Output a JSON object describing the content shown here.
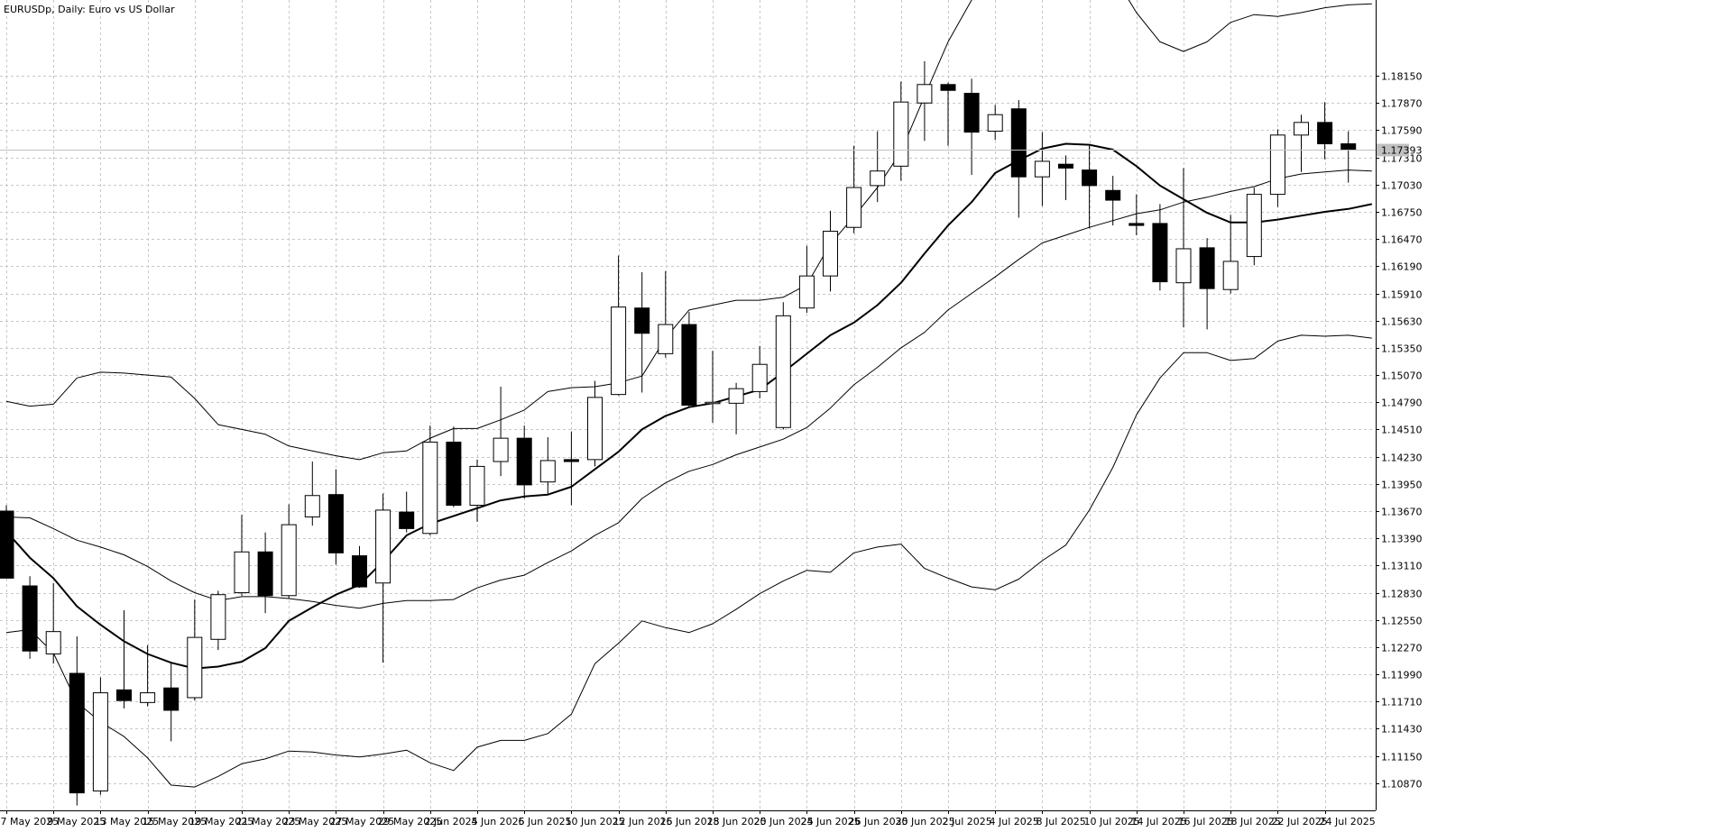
{
  "window_title": "EURUSDp, Daily: Euro vs US Dollar",
  "current_price_label": "1.17393",
  "colors": {
    "background": "#ffffff",
    "grid": "#c8c8c8",
    "candle_line": "#000000",
    "bull_body": "#ffffff",
    "bear_body": "#000000",
    "price_line": "#c0c0c0",
    "price_label_bg": "#c0c0c0",
    "price_label_text": "#ffffff"
  },
  "chart_data": {
    "type": "candlestick",
    "title": "EURUSDp, Daily: Euro vs US Dollar",
    "symbol": "EURUSDp",
    "timeframe": "Daily",
    "ylim": [
      1.1059,
      1.1893
    ],
    "y_ticks": [
      "1.18150",
      "1.17870",
      "1.17590",
      "1.17310",
      "1.17030",
      "1.16750",
      "1.16470",
      "1.16190",
      "1.15910",
      "1.15630",
      "1.15350",
      "1.15070",
      "1.14790",
      "1.14510",
      "1.14230",
      "1.13950",
      "1.13670",
      "1.13390",
      "1.13110",
      "1.12830",
      "1.12550",
      "1.12270",
      "1.11990",
      "1.11710",
      "1.11430",
      "1.11150",
      "1.10870"
    ],
    "x_tick_labels": [
      "7 May 2025",
      "9 May 2025",
      "13 May 2025",
      "15 May 2025",
      "19 May 2025",
      "21 May 2025",
      "23 May 2025",
      "27 May 2025",
      "29 May 2025",
      "2 Jun 2025",
      "4 Jun 2025",
      "6 Jun 2025",
      "10 Jun 2025",
      "12 Jun 2025",
      "16 Jun 2025",
      "18 Jun 2025",
      "20 Jun 2025",
      "24 Jun 2025",
      "26 Jun 2025",
      "30 Jun 2025",
      "2 Jul 2025",
      "4 Jul 2025",
      "8 Jul 2025",
      "10 Jul 2025",
      "14 Jul 2025",
      "16 Jul 2025",
      "18 Jul 2025",
      "22 Jul 2025",
      "24 Jul 2025"
    ],
    "x_tick_label_bars": [
      0,
      2,
      4,
      6,
      8,
      10,
      12,
      14,
      16,
      18,
      20,
      22,
      24,
      26,
      28,
      30,
      32,
      34,
      36,
      38,
      40,
      42,
      44,
      46,
      48,
      50,
      52,
      54,
      56
    ],
    "candles": [
      {
        "date": "7 May 2025",
        "open": 1.1367,
        "high": 1.1373,
        "low": 1.1298,
        "close": 1.1298
      },
      {
        "date": "8 May 2025",
        "open": 1.129,
        "high": 1.13,
        "low": 1.1215,
        "close": 1.1223
      },
      {
        "date": "9 May 2025",
        "open": 1.122,
        "high": 1.1293,
        "low": 1.121,
        "close": 1.1243
      },
      {
        "date": "12 May 2025",
        "open": 1.12,
        "high": 1.1238,
        "low": 1.1064,
        "close": 1.1077
      },
      {
        "date": "13 May 2025",
        "open": 1.1079,
        "high": 1.1196,
        "low": 1.1075,
        "close": 1.118
      },
      {
        "date": "14 May 2025",
        "open": 1.1183,
        "high": 1.1265,
        "low": 1.1164,
        "close": 1.1172
      },
      {
        "date": "15 May 2025",
        "open": 1.117,
        "high": 1.1229,
        "low": 1.1166,
        "close": 1.118
      },
      {
        "date": "16 May 2025",
        "open": 1.1185,
        "high": 1.1211,
        "low": 1.113,
        "close": 1.1162
      },
      {
        "date": "19 May 2025",
        "open": 1.1175,
        "high": 1.1276,
        "low": 1.1172,
        "close": 1.1237
      },
      {
        "date": "20 May 2025",
        "open": 1.1235,
        "high": 1.1285,
        "low": 1.1224,
        "close": 1.1281
      },
      {
        "date": "21 May 2025",
        "open": 1.1283,
        "high": 1.1363,
        "low": 1.128,
        "close": 1.1325
      },
      {
        "date": "22 May 2025",
        "open": 1.1325,
        "high": 1.1345,
        "low": 1.1262,
        "close": 1.128
      },
      {
        "date": "23 May 2025",
        "open": 1.128,
        "high": 1.1374,
        "low": 1.1277,
        "close": 1.1353
      },
      {
        "date": "26 May 2025",
        "open": 1.1361,
        "high": 1.1418,
        "low": 1.1352,
        "close": 1.1383
      },
      {
        "date": "27 May 2025",
        "open": 1.1384,
        "high": 1.141,
        "low": 1.1312,
        "close": 1.1324
      },
      {
        "date": "28 May 2025",
        "open": 1.1321,
        "high": 1.1331,
        "low": 1.1288,
        "close": 1.1289
      },
      {
        "date": "29 May 2025",
        "open": 1.1293,
        "high": 1.1385,
        "low": 1.1211,
        "close": 1.1368
      },
      {
        "date": "30 May 2025",
        "open": 1.1366,
        "high": 1.1387,
        "low": 1.1345,
        "close": 1.1349
      },
      {
        "date": "2 Jun 2025",
        "open": 1.1344,
        "high": 1.1455,
        "low": 1.1342,
        "close": 1.1438
      },
      {
        "date": "3 Jun 2025",
        "open": 1.1438,
        "high": 1.1454,
        "low": 1.1371,
        "close": 1.1373
      },
      {
        "date": "4 Jun 2025",
        "open": 1.1373,
        "high": 1.142,
        "low": 1.1356,
        "close": 1.1413
      },
      {
        "date": "5 Jun 2025",
        "open": 1.1418,
        "high": 1.1495,
        "low": 1.1403,
        "close": 1.1442
      },
      {
        "date": "6 Jun 2025",
        "open": 1.1442,
        "high": 1.1455,
        "low": 1.138,
        "close": 1.1394
      },
      {
        "date": "9 Jun 2025",
        "open": 1.1397,
        "high": 1.1443,
        "low": 1.1385,
        "close": 1.1419
      },
      {
        "date": "10 Jun 2025",
        "open": 1.142,
        "high": 1.1449,
        "low": 1.1373,
        "close": 1.1418
      },
      {
        "date": "11 Jun 2025",
        "open": 1.142,
        "high": 1.1501,
        "low": 1.1413,
        "close": 1.1484
      },
      {
        "date": "12 Jun 2025",
        "open": 1.1487,
        "high": 1.163,
        "low": 1.1486,
        "close": 1.1577
      },
      {
        "date": "13 Jun 2025",
        "open": 1.1576,
        "high": 1.1613,
        "low": 1.1489,
        "close": 1.155
      },
      {
        "date": "16 Jun 2025",
        "open": 1.1529,
        "high": 1.1614,
        "low": 1.1525,
        "close": 1.1559
      },
      {
        "date": "17 Jun 2025",
        "open": 1.1559,
        "high": 1.1572,
        "low": 1.1474,
        "close": 1.1476
      },
      {
        "date": "18 Jun 2025",
        "open": 1.1478,
        "high": 1.1532,
        "low": 1.1458,
        "close": 1.1479
      },
      {
        "date": "19 Jun 2025",
        "open": 1.1478,
        "high": 1.1499,
        "low": 1.1446,
        "close": 1.1493
      },
      {
        "date": "20 Jun 2025",
        "open": 1.149,
        "high": 1.1537,
        "low": 1.1483,
        "close": 1.1518
      },
      {
        "date": "23 Jun 2025",
        "open": 1.1453,
        "high": 1.1582,
        "low": 1.1451,
        "close": 1.1568
      },
      {
        "date": "24 Jun 2025",
        "open": 1.1576,
        "high": 1.164,
        "low": 1.1571,
        "close": 1.1609
      },
      {
        "date": "25 Jun 2025",
        "open": 1.1609,
        "high": 1.1676,
        "low": 1.1593,
        "close": 1.1655
      },
      {
        "date": "26 Jun 2025",
        "open": 1.1659,
        "high": 1.1743,
        "low": 1.1653,
        "close": 1.17
      },
      {
        "date": "27 Jun 2025",
        "open": 1.1702,
        "high": 1.1758,
        "low": 1.1685,
        "close": 1.1717
      },
      {
        "date": "30 Jun 2025",
        "open": 1.1722,
        "high": 1.1809,
        "low": 1.1707,
        "close": 1.1788
      },
      {
        "date": "1 Jul 2025",
        "open": 1.1787,
        "high": 1.183,
        "low": 1.1748,
        "close": 1.1806
      },
      {
        "date": "2 Jul 2025",
        "open": 1.1806,
        "high": 1.1808,
        "low": 1.1743,
        "close": 1.18
      },
      {
        "date": "3 Jul 2025",
        "open": 1.1797,
        "high": 1.1812,
        "low": 1.1713,
        "close": 1.1757
      },
      {
        "date": "4 Jul 2025",
        "open": 1.1758,
        "high": 1.1785,
        "low": 1.1749,
        "close": 1.1775
      },
      {
        "date": "7 Jul 2025",
        "open": 1.1781,
        "high": 1.179,
        "low": 1.1669,
        "close": 1.1711
      },
      {
        "date": "8 Jul 2025",
        "open": 1.1711,
        "high": 1.1757,
        "low": 1.1681,
        "close": 1.1727
      },
      {
        "date": "9 Jul 2025",
        "open": 1.1724,
        "high": 1.1733,
        "low": 1.1687,
        "close": 1.172
      },
      {
        "date": "10 Jul 2025",
        "open": 1.1718,
        "high": 1.1743,
        "low": 1.1658,
        "close": 1.1702
      },
      {
        "date": "11 Jul 2025",
        "open": 1.1697,
        "high": 1.1712,
        "low": 1.1661,
        "close": 1.1687
      },
      {
        "date": "14 Jul 2025",
        "open": 1.1663,
        "high": 1.1693,
        "low": 1.1651,
        "close": 1.1661
      },
      {
        "date": "15 Jul 2025",
        "open": 1.1663,
        "high": 1.1683,
        "low": 1.1594,
        "close": 1.1603
      },
      {
        "date": "16 Jul 2025",
        "open": 1.1602,
        "high": 1.172,
        "low": 1.1556,
        "close": 1.1637
      },
      {
        "date": "17 Jul 2025",
        "open": 1.1638,
        "high": 1.1648,
        "low": 1.1554,
        "close": 1.1596
      },
      {
        "date": "18 Jul 2025",
        "open": 1.1595,
        "high": 1.1672,
        "low": 1.1591,
        "close": 1.1624
      },
      {
        "date": "21 Jul 2025",
        "open": 1.1629,
        "high": 1.17,
        "low": 1.162,
        "close": 1.1693
      },
      {
        "date": "22 Jul 2025",
        "open": 1.1693,
        "high": 1.176,
        "low": 1.168,
        "close": 1.1754
      },
      {
        "date": "23 Jul 2025",
        "open": 1.1754,
        "high": 1.1775,
        "low": 1.1716,
        "close": 1.1767
      },
      {
        "date": "24 Jul 2025",
        "open": 1.1767,
        "high": 1.1788,
        "low": 1.1729,
        "close": 1.1745
      },
      {
        "date": "25 Jul 2025",
        "open": 1.1745,
        "high": 1.1758,
        "low": 1.1705,
        "close": 1.1739
      }
    ],
    "ma_line": [
      1.1346,
      1.1319,
      1.1298,
      1.1269,
      1.125,
      1.1233,
      1.122,
      1.1211,
      1.1205,
      1.1207,
      1.1212,
      1.1226,
      1.1254,
      1.1268,
      1.1281,
      1.1291,
      1.1315,
      1.1342,
      1.1354,
      1.1362,
      1.137,
      1.1378,
      1.1382,
      1.1384,
      1.1392,
      1.141,
      1.1428,
      1.1451,
      1.1465,
      1.1474,
      1.1478,
      1.1485,
      1.1492,
      1.151,
      1.1529,
      1.1548,
      1.1561,
      1.1579,
      1.1602,
      1.1632,
      1.1661,
      1.1685,
      1.1715,
      1.1728,
      1.174,
      1.1745,
      1.1744,
      1.1739,
      1.1722,
      1.1702,
      1.1688,
      1.1674,
      1.1664,
      1.1664,
      1.1667,
      1.1671,
      1.1675,
      1.1678,
      1.1683
    ],
    "upper_band": [
      1.148,
      1.1475,
      1.1477,
      1.1504,
      1.151,
      1.1509,
      1.1507,
      1.1505,
      1.1483,
      1.1456,
      1.1451,
      1.1446,
      1.1434,
      1.1429,
      1.1424,
      1.142,
      1.1427,
      1.1429,
      1.1442,
      1.1452,
      1.1452,
      1.1461,
      1.1471,
      1.149,
      1.1494,
      1.1495,
      1.1499,
      1.1506,
      1.1545,
      1.1574,
      1.1579,
      1.1584,
      1.1584,
      1.1587,
      1.16,
      1.1642,
      1.167,
      1.17,
      1.1737,
      1.1794,
      1.185,
      1.1893,
      1.193,
      1.1955,
      1.197,
      1.197,
      1.195,
      1.192,
      1.188,
      1.185,
      1.184,
      1.185,
      1.187,
      1.1878,
      1.1876,
      1.188,
      1.1885,
      1.1888,
      1.1889
    ],
    "middle_band": [
      1.1361,
      1.136,
      1.1349,
      1.1337,
      1.133,
      1.1322,
      1.131,
      1.1295,
      1.1283,
      1.1275,
      1.1279,
      1.1279,
      1.1277,
      1.1274,
      1.127,
      1.1267,
      1.1272,
      1.1275,
      1.1275,
      1.1276,
      1.1288,
      1.1296,
      1.1301,
      1.1314,
      1.1326,
      1.1342,
      1.1355,
      1.138,
      1.1396,
      1.1408,
      1.1415,
      1.1425,
      1.1433,
      1.1441,
      1.1453,
      1.1473,
      1.1497,
      1.1515,
      1.1535,
      1.1551,
      1.1574,
      1.1591,
      1.1608,
      1.1626,
      1.1643,
      1.1651,
      1.1659,
      1.1666,
      1.1673,
      1.1677,
      1.1685,
      1.169,
      1.1696,
      1.1701,
      1.1709,
      1.1714,
      1.1716,
      1.1718,
      1.1717
    ],
    "lower_band": [
      1.1242,
      1.1245,
      1.1221,
      1.117,
      1.115,
      1.1135,
      1.1113,
      1.1085,
      1.1083,
      1.1094,
      1.1107,
      1.1112,
      1.112,
      1.1119,
      1.1116,
      1.1114,
      1.1117,
      1.1121,
      1.1108,
      1.11,
      1.1124,
      1.1131,
      1.1131,
      1.1138,
      1.1158,
      1.121,
      1.1231,
      1.1254,
      1.1247,
      1.1242,
      1.1251,
      1.1266,
      1.1282,
      1.1295,
      1.1306,
      1.1304,
      1.1324,
      1.133,
      1.1333,
      1.1308,
      1.1298,
      1.1289,
      1.1286,
      1.1297,
      1.1316,
      1.1332,
      1.1368,
      1.1412,
      1.1466,
      1.1504,
      1.153,
      1.153,
      1.1522,
      1.1524,
      1.1542,
      1.1548,
      1.1547,
      1.1548,
      1.1545
    ]
  }
}
